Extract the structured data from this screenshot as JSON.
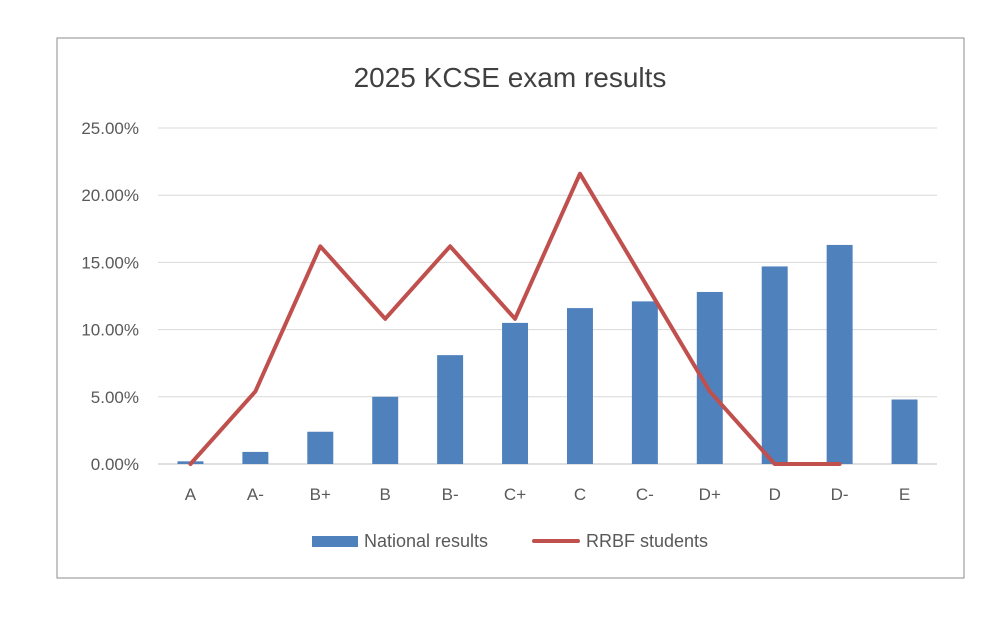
{
  "chart_data": {
    "type": "bar",
    "title": "2025 KCSE exam results",
    "xlabel": "",
    "ylabel": "",
    "categories": [
      "A",
      "A-",
      "B+",
      "B",
      "B-",
      "C+",
      "C",
      "C-",
      "D+",
      "D",
      "D-",
      "E"
    ],
    "ylim": [
      0,
      0.25
    ],
    "yticks": [
      0,
      0.05,
      0.1,
      0.15,
      0.2,
      0.25
    ],
    "ytick_labels": [
      "0.00%",
      "5.00%",
      "10.00%",
      "15.00%",
      "20.00%",
      "25.00%"
    ],
    "grid": true,
    "legend_position": "bottom",
    "series": [
      {
        "name": "National results",
        "type": "bar",
        "color": "#4F81BD",
        "values": [
          0.002,
          0.009,
          0.024,
          0.05,
          0.081,
          0.105,
          0.116,
          0.121,
          0.128,
          0.147,
          0.163,
          0.048
        ]
      },
      {
        "name": "RRBF students",
        "type": "line",
        "color": "#C0504D",
        "values": [
          0.0,
          0.054,
          0.162,
          0.108,
          0.162,
          0.108,
          0.216,
          0.135,
          0.054,
          0.0,
          0.0,
          null
        ]
      }
    ]
  }
}
